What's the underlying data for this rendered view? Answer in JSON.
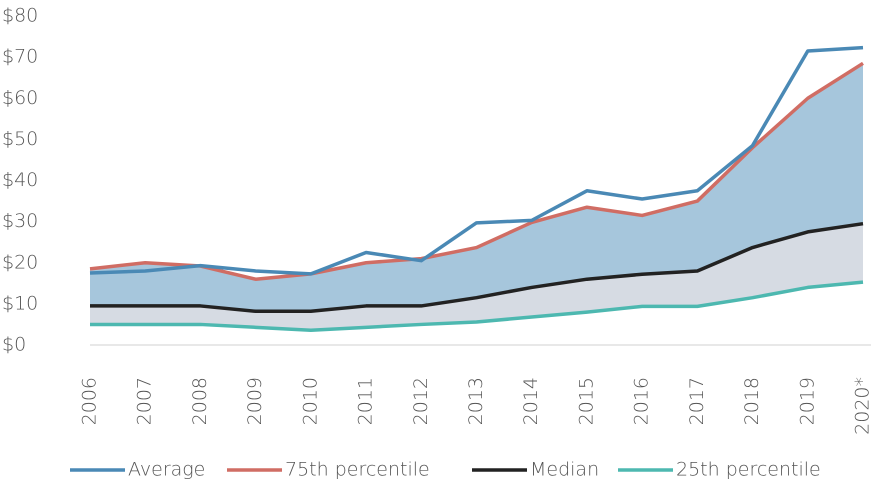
{
  "chart_data": {
    "type": "line",
    "categories": [
      "2006",
      "2007",
      "2008",
      "2009",
      "2010",
      "2011",
      "2012",
      "2013",
      "2014",
      "2015",
      "2016",
      "2017",
      "2018",
      "2019",
      "2020*"
    ],
    "series": [
      {
        "name": "Average",
        "color": "#4a89b5",
        "values": [
          17.5,
          18,
          19.3,
          18,
          17.3,
          22.5,
          20.5,
          29.7,
          30.3,
          37.5,
          35.5,
          37.5,
          48.5,
          71.5,
          72.3
        ]
      },
      {
        "name": "75th percentile",
        "color": "#d06d64",
        "fill": "#a6c6dc",
        "values": [
          18.5,
          20,
          19.2,
          16,
          17.3,
          20,
          21,
          23.7,
          29.8,
          33.5,
          31.5,
          35,
          48,
          60,
          68.5
        ]
      },
      {
        "name": "Median",
        "color": "#222222",
        "fill": "#d6dbe3",
        "values": [
          9.5,
          9.5,
          9.5,
          8.2,
          8.2,
          9.5,
          9.5,
          11.5,
          14,
          16,
          17.2,
          18,
          23.7,
          27.5,
          29.5
        ]
      },
      {
        "name": "25th percentile",
        "color": "#4db8b0",
        "values": [
          5,
          5,
          5,
          4.3,
          3.6,
          4.3,
          5,
          5.6,
          6.8,
          8,
          9.4,
          9.4,
          11.5,
          14,
          15.3
        ]
      }
    ],
    "ylim": [
      0,
      80
    ],
    "yticks": [
      {
        "value": 0,
        "label": "$0"
      },
      {
        "value": 10,
        "label": "$10"
      },
      {
        "value": 20,
        "label": "$20"
      },
      {
        "value": 30,
        "label": "$30"
      },
      {
        "value": 40,
        "label": "$40"
      },
      {
        "value": 50,
        "label": "$50"
      },
      {
        "value": 60,
        "label": "$60"
      },
      {
        "value": 70,
        "label": "$70"
      },
      {
        "value": 80,
        "label": "$80"
      }
    ],
    "grid": false,
    "legend": "bottom"
  }
}
